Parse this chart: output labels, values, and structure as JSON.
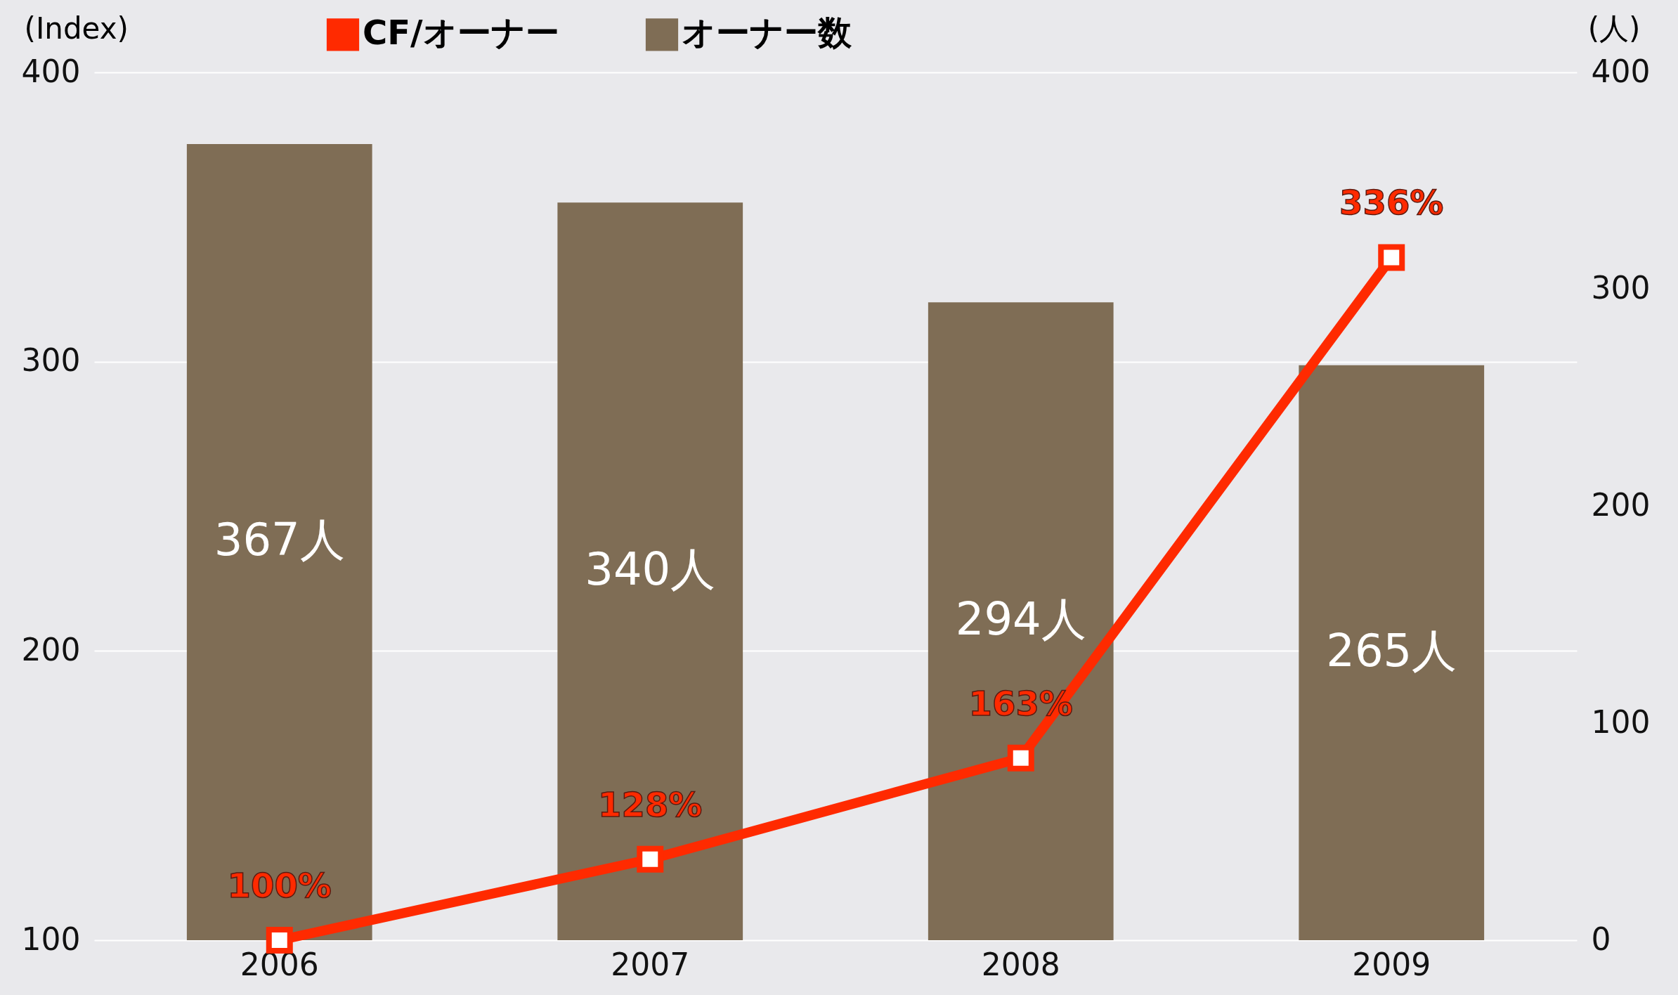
{
  "chart_data": {
    "type": "bar",
    "categories": [
      "2006",
      "2007",
      "2008",
      "2009"
    ],
    "series": [
      {
        "name": "CF/オーナー",
        "type": "line",
        "color": "#ff2a00",
        "values": [
          100,
          128,
          163,
          336
        ],
        "value_labels": [
          "100%",
          "128%",
          "163%",
          "336%"
        ]
      },
      {
        "name": "オーナー数",
        "axis": "y2",
        "color": "#7f6d55",
        "values": [
          367,
          340,
          294,
          265
        ],
        "value_labels": [
          "367人",
          "340人",
          "294人",
          "265人"
        ]
      }
    ],
    "ylabel": "(Index)",
    "y2label": "(人)",
    "ylim": [
      100,
      400
    ],
    "yticks": [
      100,
      200,
      300,
      400
    ],
    "y2lim": [
      0,
      400
    ],
    "y2ticks": [
      0,
      100,
      200,
      300,
      400
    ],
    "grid": "y",
    "legend": "top",
    "marker": "square",
    "line_style": "solid"
  }
}
